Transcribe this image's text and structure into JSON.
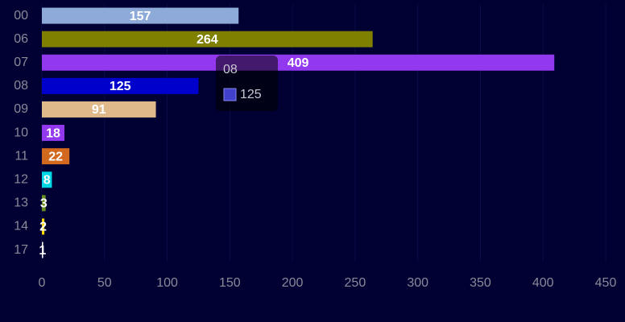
{
  "chart_data": {
    "type": "bar",
    "orientation": "horizontal",
    "categories": [
      "00",
      "06",
      "07",
      "08",
      "09",
      "10",
      "11",
      "12",
      "13",
      "14",
      "17"
    ],
    "values": [
      157,
      264,
      409,
      125,
      91,
      18,
      22,
      8,
      3,
      2,
      1
    ],
    "colors": [
      "#8eaad8",
      "#808000",
      "#9238ef",
      "#0000cc",
      "#e0b98a",
      "#9238ef",
      "#d2691e",
      "#00d8e8",
      "#6b8e23",
      "#ffd700",
      "#ffffff"
    ],
    "xlim": [
      0,
      450
    ],
    "xticks": [
      0,
      50,
      100,
      150,
      200,
      250,
      300,
      350,
      400,
      450
    ],
    "grid": true
  }
}
